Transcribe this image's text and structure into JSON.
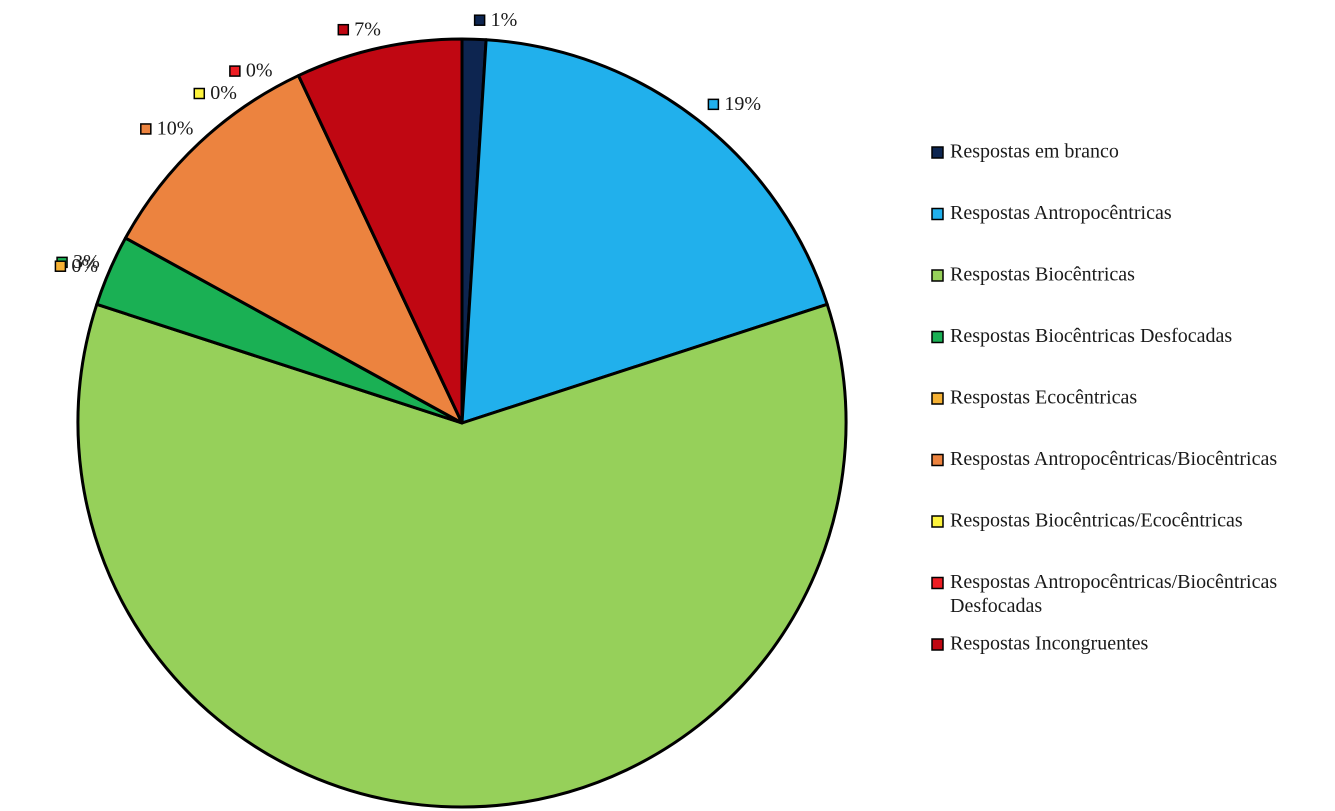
{
  "chart_data": {
    "type": "pie",
    "title": "",
    "start_angle_deg": 0,
    "direction": "clockwise",
    "legend_position": "right",
    "slices": [
      {
        "label": "Respostas em branco",
        "value": 1,
        "display": "1%",
        "color": "#0d2550"
      },
      {
        "label": "Respostas Antropocêntricas",
        "value": 19,
        "display": "19%",
        "color": "#21b0ec"
      },
      {
        "label": "Respostas Biocêntricas",
        "value": 60,
        "display": "60%",
        "color": "#96d05a"
      },
      {
        "label": "Respostas Biocêntricas Desfocadas",
        "value": 3,
        "display": "3%",
        "color": "#1ab054"
      },
      {
        "label": "Respostas Ecocêntricas",
        "value": 0,
        "display": "0%",
        "color": "#f5b134"
      },
      {
        "label": "Respostas Antropocêntricas/Biocêntricas",
        "value": 10,
        "display": "10%",
        "color": "#ec833f"
      },
      {
        "label": "Respostas Biocêntricas/Ecocêntricas",
        "value": 0,
        "display": "0%",
        "color": "#fef43e"
      },
      {
        "label": "Respostas Antropocêntricas/Biocêntricas Desfocadas",
        "legend_lines": [
          "Respostas Antropocêntricas/Biocêntricas",
          "Desfocadas"
        ],
        "value": 0,
        "display": "0%",
        "color": "#ee1d23"
      },
      {
        "label": "Respostas Incongruentes",
        "value": 7,
        "display": "7%",
        "color": "#c00712"
      }
    ]
  }
}
